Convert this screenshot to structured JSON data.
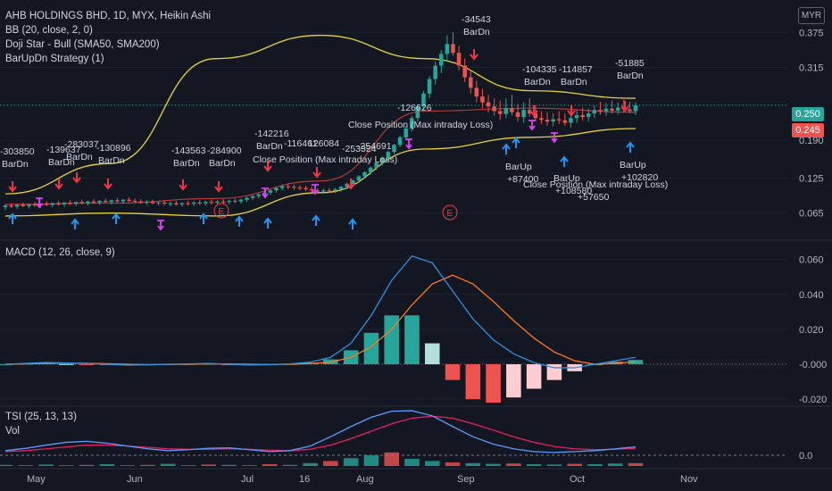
{
  "legend": {
    "symbol": "AHB HOLDINGS BHD, 1D, MYX, Heikin Ashi",
    "bb": "BB (20, close, 2, 0)",
    "doji": "Doji Star - Bull (SMA50, SMA200)",
    "strategy": "BarUpDn Strategy (1)",
    "macd": "MACD (12, 26, close, 9)",
    "tsi": "TSI (25, 13, 13)",
    "vol": "Vol"
  },
  "currency_button": "MYR",
  "price_tags": {
    "last": "0.250",
    "prev": "0.245"
  },
  "colors": {
    "bg": "#131722",
    "up": "#26a69a",
    "down": "#ef5350",
    "bb": "#e8d13a",
    "basis": "#b33a3a",
    "macd": "#2f8fe0",
    "signal": "#ff7a20",
    "tsi": "#5b9cff",
    "tsi_signal": "#e91e63",
    "buy": "#2196f3",
    "sell": "#f23645",
    "doji": "#e040fb"
  },
  "annotations": [
    {
      "text": "-303850",
      "sub": "BarDn"
    },
    {
      "text": "-139637",
      "sub": "BarDn"
    },
    {
      "text": "-283037",
      "sub": "BarDn"
    },
    {
      "text": "-130896",
      "sub": "BarDn"
    },
    {
      "text": "-143563",
      "sub": "BarDn"
    },
    {
      "text": "-284900",
      "sub": "BarDn"
    },
    {
      "text": "-142216",
      "sub": "BarDn"
    },
    {
      "text": "-116461",
      "sub": ""
    },
    {
      "text": "126084",
      "sub": ""
    },
    {
      "text": "-253324",
      "sub": ""
    },
    {
      "text": "-254691",
      "sub": ""
    },
    {
      "text": "-126626",
      "sub": ""
    },
    {
      "text": "-34543",
      "sub": "BarDn"
    },
    {
      "text": "-104335",
      "sub": "BarDn"
    },
    {
      "text": "-114857",
      "sub": "BarDn"
    },
    {
      "text": "-51885",
      "sub": "BarDn"
    },
    {
      "text": "Close Position (Max intraday Loss)",
      "sub": ""
    },
    {
      "text": "Close Position (Max intraday Loss)",
      "sub": ""
    },
    {
      "text": "Close Position (Max intraday Loss)",
      "sub": ""
    },
    {
      "text": "BarUp",
      "sub": "+87400"
    },
    {
      "text": "BarUp",
      "sub": "+108580"
    },
    {
      "text": "+57650",
      "sub": ""
    },
    {
      "text": "BarUp",
      "sub": "+102820"
    }
  ],
  "chart_data": [
    {
      "type": "candlestick",
      "title": "AHB HOLDINGS BHD, 1D, MYX, Heikin Ashi",
      "x": [
        "May",
        "Jun",
        "Jul",
        "16",
        "Aug",
        "Sep",
        "Oct",
        "Nov"
      ],
      "y_ticks": [
        "0.375",
        "0.315",
        "0.250",
        "0.190",
        "0.125",
        "0.065"
      ],
      "ylim": [
        0.04,
        0.4
      ],
      "ohlc": [
        [
          0.075,
          0.08,
          0.07,
          0.078
        ],
        [
          0.078,
          0.082,
          0.074,
          0.076
        ],
        [
          0.076,
          0.08,
          0.072,
          0.079
        ],
        [
          0.079,
          0.083,
          0.075,
          0.077
        ],
        [
          0.077,
          0.081,
          0.073,
          0.08
        ],
        [
          0.08,
          0.084,
          0.076,
          0.078
        ],
        [
          0.078,
          0.082,
          0.074,
          0.081
        ],
        [
          0.081,
          0.085,
          0.077,
          0.079
        ],
        [
          0.079,
          0.083,
          0.075,
          0.082
        ],
        [
          0.082,
          0.086,
          0.078,
          0.08
        ],
        [
          0.08,
          0.084,
          0.076,
          0.083
        ],
        [
          0.083,
          0.087,
          0.079,
          0.081
        ],
        [
          0.081,
          0.085,
          0.077,
          0.084
        ],
        [
          0.084,
          0.088,
          0.08,
          0.082
        ],
        [
          0.082,
          0.086,
          0.078,
          0.085
        ],
        [
          0.085,
          0.089,
          0.081,
          0.083
        ],
        [
          0.083,
          0.087,
          0.079,
          0.086
        ],
        [
          0.086,
          0.09,
          0.082,
          0.084
        ],
        [
          0.084,
          0.088,
          0.08,
          0.087
        ],
        [
          0.087,
          0.091,
          0.083,
          0.085
        ],
        [
          0.085,
          0.089,
          0.081,
          0.088
        ],
        [
          0.088,
          0.092,
          0.084,
          0.086
        ],
        [
          0.086,
          0.09,
          0.082,
          0.085
        ],
        [
          0.085,
          0.089,
          0.081,
          0.083
        ],
        [
          0.083,
          0.087,
          0.079,
          0.084
        ],
        [
          0.084,
          0.088,
          0.08,
          0.082
        ],
        [
          0.082,
          0.086,
          0.078,
          0.083
        ],
        [
          0.083,
          0.087,
          0.079,
          0.081
        ],
        [
          0.081,
          0.085,
          0.077,
          0.082
        ],
        [
          0.082,
          0.086,
          0.078,
          0.08
        ],
        [
          0.08,
          0.084,
          0.076,
          0.082
        ],
        [
          0.082,
          0.086,
          0.078,
          0.081
        ],
        [
          0.081,
          0.085,
          0.077,
          0.083
        ],
        [
          0.083,
          0.087,
          0.079,
          0.082
        ],
        [
          0.082,
          0.086,
          0.078,
          0.084
        ],
        [
          0.084,
          0.088,
          0.08,
          0.083
        ],
        [
          0.083,
          0.087,
          0.079,
          0.085
        ],
        [
          0.085,
          0.089,
          0.081,
          0.084
        ],
        [
          0.084,
          0.088,
          0.08,
          0.086
        ],
        [
          0.086,
          0.09,
          0.082,
          0.085
        ],
        [
          0.085,
          0.09,
          0.081,
          0.088
        ],
        [
          0.088,
          0.093,
          0.084,
          0.091
        ],
        [
          0.091,
          0.096,
          0.087,
          0.094
        ],
        [
          0.094,
          0.099,
          0.09,
          0.097
        ],
        [
          0.097,
          0.102,
          0.093,
          0.1
        ],
        [
          0.1,
          0.106,
          0.096,
          0.104
        ],
        [
          0.104,
          0.11,
          0.1,
          0.108
        ],
        [
          0.108,
          0.114,
          0.104,
          0.111
        ],
        [
          0.111,
          0.116,
          0.106,
          0.11
        ],
        [
          0.11,
          0.114,
          0.105,
          0.109
        ],
        [
          0.109,
          0.113,
          0.104,
          0.108
        ],
        [
          0.108,
          0.112,
          0.103,
          0.106
        ],
        [
          0.106,
          0.11,
          0.101,
          0.104
        ],
        [
          0.104,
          0.108,
          0.099,
          0.102
        ],
        [
          0.102,
          0.107,
          0.098,
          0.104
        ],
        [
          0.104,
          0.108,
          0.099,
          0.103
        ],
        [
          0.103,
          0.108,
          0.099,
          0.106
        ],
        [
          0.106,
          0.112,
          0.102,
          0.11
        ],
        [
          0.11,
          0.117,
          0.106,
          0.115
        ],
        [
          0.115,
          0.123,
          0.111,
          0.121
        ],
        [
          0.121,
          0.13,
          0.117,
          0.128
        ],
        [
          0.128,
          0.137,
          0.124,
          0.135
        ],
        [
          0.135,
          0.145,
          0.131,
          0.143
        ],
        [
          0.143,
          0.153,
          0.139,
          0.151
        ],
        [
          0.151,
          0.162,
          0.147,
          0.16
        ],
        [
          0.16,
          0.172,
          0.156,
          0.17
        ],
        [
          0.17,
          0.184,
          0.166,
          0.182
        ],
        [
          0.182,
          0.198,
          0.178,
          0.195
        ],
        [
          0.195,
          0.214,
          0.19,
          0.21
        ],
        [
          0.21,
          0.232,
          0.205,
          0.228
        ],
        [
          0.228,
          0.252,
          0.222,
          0.248
        ],
        [
          0.248,
          0.275,
          0.242,
          0.27
        ],
        [
          0.27,
          0.3,
          0.262,
          0.295
        ],
        [
          0.295,
          0.325,
          0.285,
          0.318
        ],
        [
          0.318,
          0.345,
          0.305,
          0.338
        ],
        [
          0.338,
          0.37,
          0.325,
          0.355
        ],
        [
          0.355,
          0.375,
          0.335,
          0.34
        ],
        [
          0.34,
          0.352,
          0.31,
          0.318
        ],
        [
          0.318,
          0.33,
          0.29,
          0.298
        ],
        [
          0.298,
          0.31,
          0.27,
          0.28
        ],
        [
          0.28,
          0.292,
          0.255,
          0.265
        ],
        [
          0.265,
          0.278,
          0.245,
          0.255
        ],
        [
          0.255,
          0.268,
          0.238,
          0.248
        ],
        [
          0.248,
          0.262,
          0.232,
          0.24
        ],
        [
          0.24,
          0.258,
          0.225,
          0.235
        ],
        [
          0.235,
          0.262,
          0.228,
          0.245
        ],
        [
          0.245,
          0.268,
          0.232,
          0.238
        ],
        [
          0.238,
          0.252,
          0.222,
          0.23
        ],
        [
          0.23,
          0.255,
          0.22,
          0.242
        ],
        [
          0.242,
          0.262,
          0.23,
          0.236
        ],
        [
          0.236,
          0.25,
          0.222,
          0.228
        ],
        [
          0.228,
          0.24,
          0.218,
          0.225
        ],
        [
          0.225,
          0.238,
          0.215,
          0.222
        ],
        [
          0.222,
          0.236,
          0.214,
          0.226
        ],
        [
          0.226,
          0.24,
          0.218,
          0.224
        ],
        [
          0.224,
          0.236,
          0.215,
          0.22
        ],
        [
          0.22,
          0.235,
          0.212,
          0.228
        ],
        [
          0.228,
          0.242,
          0.22,
          0.233
        ],
        [
          0.233,
          0.246,
          0.224,
          0.23
        ],
        [
          0.23,
          0.244,
          0.222,
          0.236
        ],
        [
          0.236,
          0.25,
          0.228,
          0.242
        ],
        [
          0.242,
          0.256,
          0.234,
          0.24
        ],
        [
          0.24,
          0.254,
          0.232,
          0.244
        ],
        [
          0.244,
          0.258,
          0.236,
          0.241
        ],
        [
          0.241,
          0.255,
          0.234,
          0.246
        ],
        [
          0.246,
          0.26,
          0.238,
          0.243
        ],
        [
          0.243,
          0.256,
          0.236,
          0.24
        ],
        [
          0.24,
          0.255,
          0.233,
          0.25
        ]
      ],
      "bb_upper": [
        0.098,
        0.15,
        0.33,
        0.37,
        0.33,
        0.275,
        0.262
      ],
      "bb_lower": [
        0.06,
        0.065,
        0.06,
        0.1,
        0.175,
        0.195,
        0.21
      ],
      "basis": [
        0.08,
        0.082,
        0.09,
        0.12,
        0.24,
        0.245,
        0.238
      ]
    },
    {
      "type": "line",
      "title": "MACD (12, 26, close, 9)",
      "y_ticks": [
        "0.060",
        "0.040",
        "0.020",
        "-0.000",
        "-0.020"
      ],
      "ylim": [
        -0.024,
        0.068
      ],
      "macd": [
        0.0,
        0.0005,
        0.001,
        0.0008,
        0.0005,
        0.0,
        -0.0005,
        -0.0003,
        0.0,
        0.0002,
        0.0005,
        0.0,
        -0.0004,
        -0.0002,
        0.0002,
        0.0012,
        0.004,
        0.012,
        0.028,
        0.048,
        0.062,
        0.058,
        0.042,
        0.026,
        0.014,
        0.006,
        0.001,
        -0.002,
        -0.002,
        0.0,
        0.002,
        0.004
      ],
      "signal": [
        0.0,
        0.0002,
        0.0005,
        0.0007,
        0.0006,
        0.0003,
        0.0,
        -0.0002,
        -0.0001,
        0.0,
        0.0002,
        0.0002,
        0.0,
        -0.0001,
        0.0,
        0.0004,
        0.0012,
        0.004,
        0.01,
        0.02,
        0.034,
        0.046,
        0.051,
        0.046,
        0.036,
        0.025,
        0.015,
        0.007,
        0.002,
        0.0,
        0.0005,
        0.0015
      ],
      "histogram": [
        0.0,
        0.0003,
        0.0005,
        0.0001,
        -0.0001,
        -0.0003,
        -0.0005,
        -0.0001,
        0.0001,
        0.0002,
        0.0003,
        -0.0002,
        -0.0004,
        -0.0001,
        0.0002,
        0.0008,
        0.0028,
        0.008,
        0.018,
        0.028,
        0.028,
        0.012,
        -0.009,
        -0.02,
        -0.022,
        -0.019,
        -0.014,
        -0.009,
        -0.004,
        0.0,
        0.0015,
        0.0025
      ]
    },
    {
      "type": "line",
      "title": "TSI (25, 13, 13)",
      "y_ticks": [
        "0.0"
      ],
      "tsi": [
        0.1,
        0.15,
        0.22,
        0.28,
        0.3,
        0.26,
        0.2,
        0.14,
        0.1,
        0.12,
        0.15,
        0.16,
        0.12,
        0.08,
        0.1,
        0.2,
        0.4,
        0.62,
        0.82,
        0.95,
        0.96,
        0.85,
        0.62,
        0.4,
        0.24,
        0.14,
        0.08,
        0.06,
        0.08,
        0.1,
        0.14,
        0.18
      ],
      "tsi_signal": [
        0.08,
        0.1,
        0.14,
        0.18,
        0.22,
        0.22,
        0.2,
        0.17,
        0.14,
        0.13,
        0.13,
        0.14,
        0.13,
        0.11,
        0.1,
        0.13,
        0.22,
        0.36,
        0.52,
        0.68,
        0.8,
        0.84,
        0.8,
        0.68,
        0.54,
        0.4,
        0.28,
        0.19,
        0.14,
        0.12,
        0.13,
        0.15
      ],
      "volume": [
        0.03,
        0.02,
        0.04,
        0.02,
        0.03,
        0.05,
        0.02,
        0.03,
        0.06,
        0.02,
        0.04,
        0.03,
        0.02,
        0.05,
        0.03,
        0.08,
        0.14,
        0.22,
        0.3,
        0.38,
        0.2,
        0.14,
        0.1,
        0.08,
        0.06,
        0.07,
        0.05,
        0.04,
        0.06,
        0.05,
        0.07,
        0.08
      ]
    }
  ]
}
